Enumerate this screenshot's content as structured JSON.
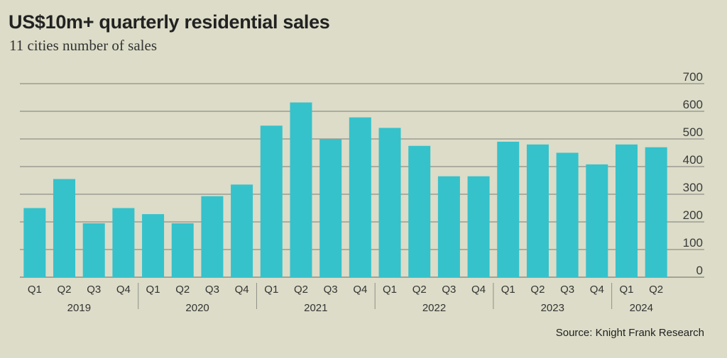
{
  "title": "US$10m+ quarterly residential sales",
  "subtitle": "11 cities number of sales",
  "source": "Source: Knight Frank Research",
  "colors": {
    "bar": "#35c2cb",
    "grid": "#8f8f88",
    "background": "#dcdcc8",
    "text": "#333333"
  },
  "chart_data": {
    "type": "bar",
    "categories": [
      "Q1",
      "Q2",
      "Q3",
      "Q4",
      "Q1",
      "Q2",
      "Q3",
      "Q4",
      "Q1",
      "Q2",
      "Q3",
      "Q4",
      "Q1",
      "Q2",
      "Q3",
      "Q4",
      "Q1",
      "Q2",
      "Q3",
      "Q4",
      "Q1",
      "Q2"
    ],
    "groups": [
      {
        "label": "2019",
        "count": 4
      },
      {
        "label": "2020",
        "count": 4
      },
      {
        "label": "2021",
        "count": 4
      },
      {
        "label": "2022",
        "count": 4
      },
      {
        "label": "2023",
        "count": 4
      },
      {
        "label": "2024",
        "count": 2
      }
    ],
    "values": [
      250,
      355,
      195,
      250,
      228,
      195,
      293,
      335,
      548,
      632,
      500,
      578,
      540,
      475,
      365,
      365,
      490,
      480,
      450,
      408,
      480,
      470
    ],
    "ylim": [
      0,
      700
    ],
    "yticks": [
      0,
      100,
      200,
      300,
      400,
      500,
      600,
      700
    ],
    "y_axis_position": "right",
    "grid": true,
    "xlabel": "",
    "ylabel": ""
  }
}
